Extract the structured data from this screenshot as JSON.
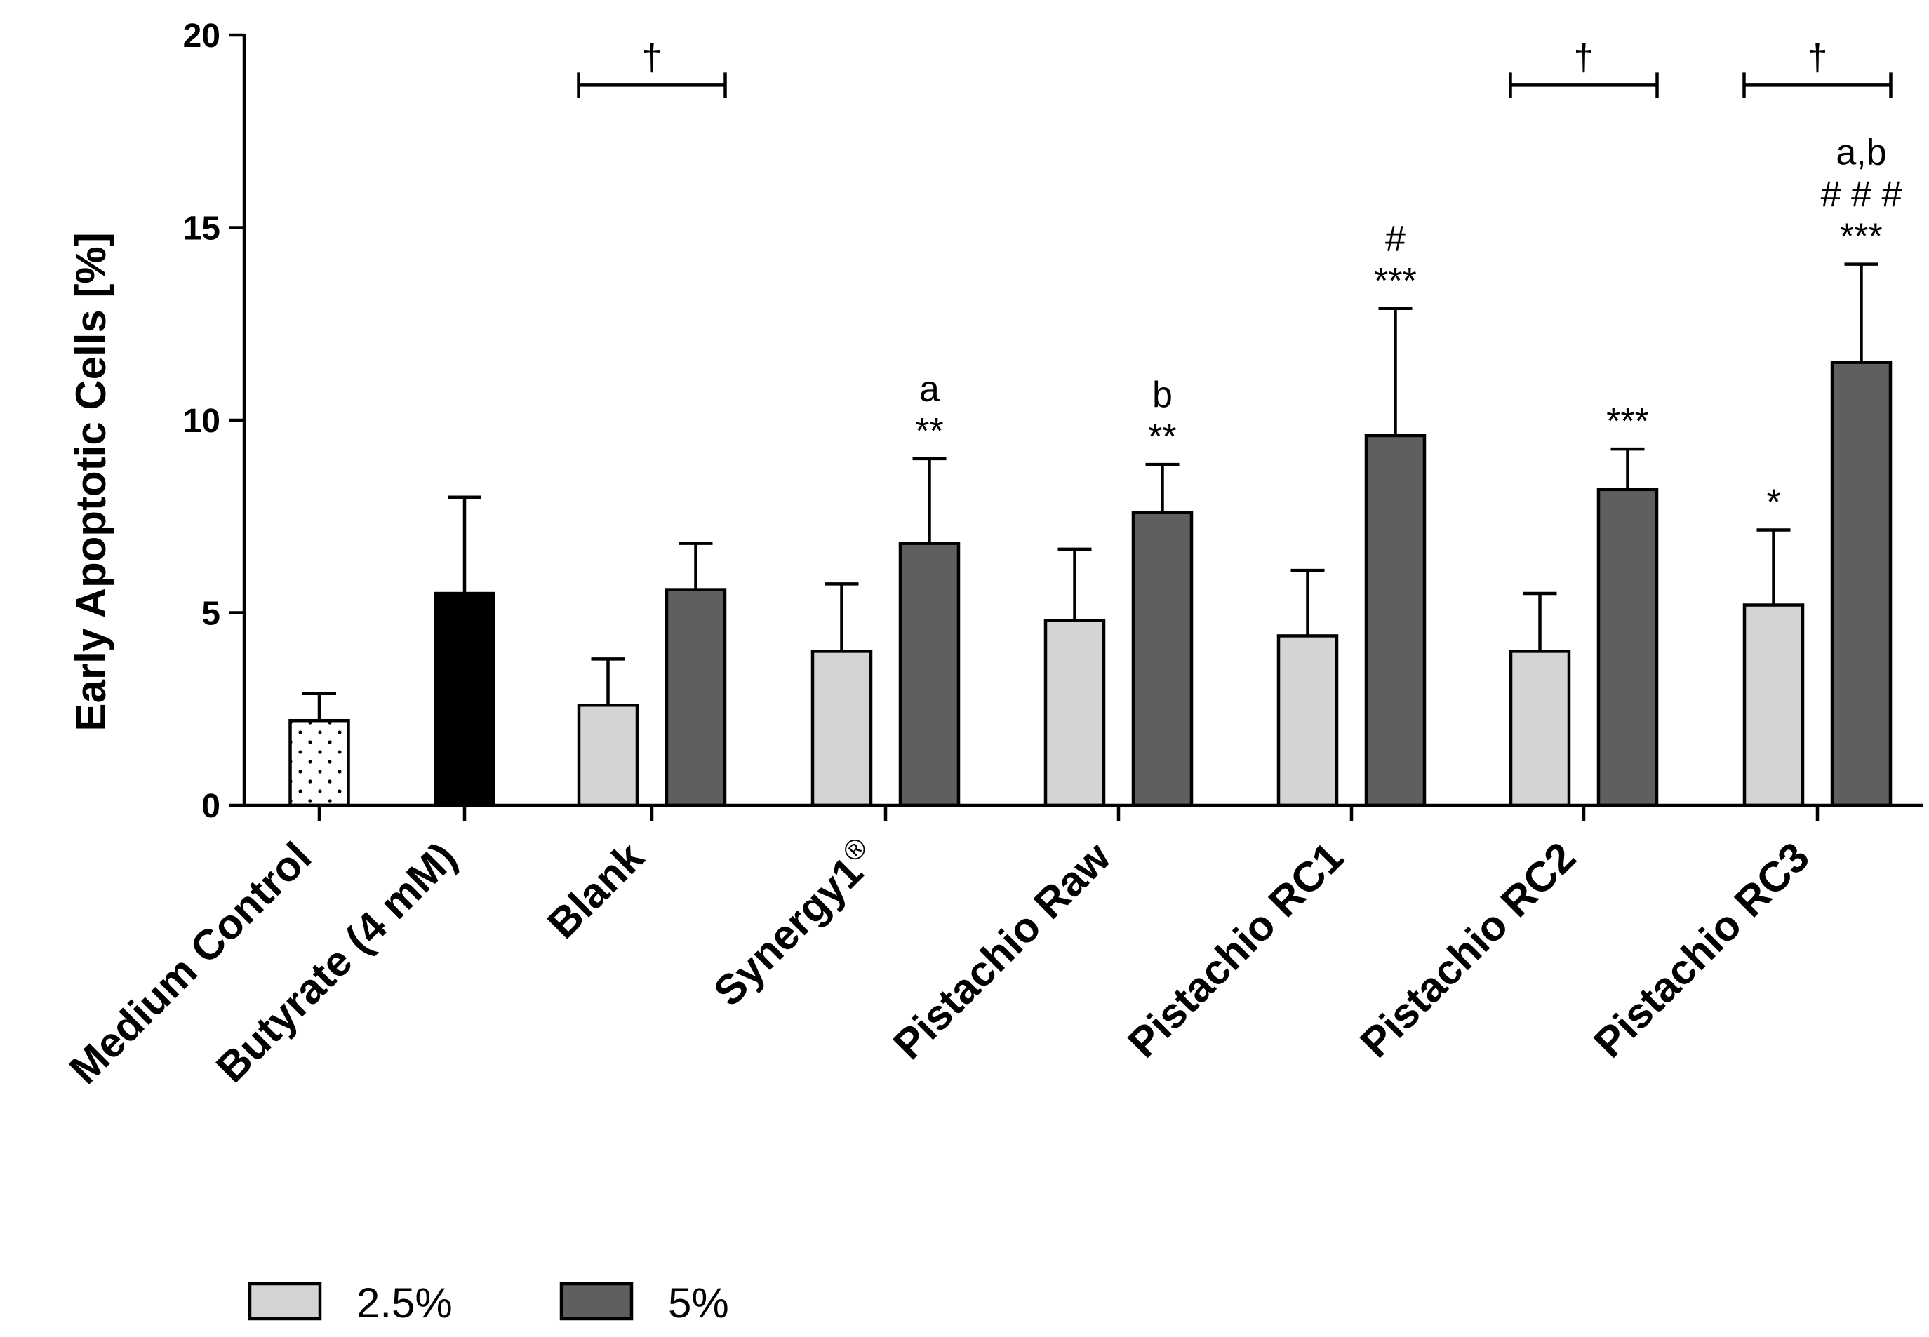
{
  "chart_data": {
    "type": "bar",
    "ylabel": "Early Apoptotic Cells [%]",
    "xlabel": "",
    "ylim": [
      0,
      20
    ],
    "yticks": [
      0,
      5,
      10,
      15,
      20
    ],
    "colors": {
      "medium": "#ffffff",
      "butyrate": "#000000",
      "s25": "#d4d4d4",
      "s5": "#5f5f5f"
    },
    "legend": {
      "position": "bottom-left",
      "items": [
        {
          "label": "2.5%",
          "series": "s25"
        },
        {
          "label": "5%",
          "series": "s5"
        }
      ]
    },
    "groups": [
      {
        "label": "Medium Control",
        "sup": "",
        "bars": [
          {
            "series": "medium",
            "value": 2.2,
            "error": 0.7,
            "annotations": []
          }
        ]
      },
      {
        "label": "Butyrate (4 mM)",
        "sup": "",
        "bars": [
          {
            "series": "butyrate",
            "value": 5.5,
            "error": 2.5,
            "annotations": []
          }
        ]
      },
      {
        "label": "Blank",
        "sup": "",
        "dagger": "†",
        "bars": [
          {
            "series": "s25",
            "value": 2.6,
            "error": 1.2,
            "annotations": []
          },
          {
            "series": "s5",
            "value": 5.6,
            "error": 1.2,
            "annotations": []
          }
        ]
      },
      {
        "label": "Synergy1",
        "sup": "®",
        "bars": [
          {
            "series": "s25",
            "value": 4.0,
            "error": 1.75,
            "annotations": []
          },
          {
            "series": "s5",
            "value": 6.8,
            "error": 2.2,
            "annotations": [
              "**",
              "a"
            ]
          }
        ]
      },
      {
        "label": "Pistachio Raw",
        "sup": "",
        "bars": [
          {
            "series": "s25",
            "value": 4.8,
            "error": 1.85,
            "annotations": []
          },
          {
            "series": "s5",
            "value": 7.6,
            "error": 1.25,
            "annotations": [
              "**",
              "b"
            ]
          }
        ]
      },
      {
        "label": "Pistachio RC1",
        "sup": "",
        "bars": [
          {
            "series": "s25",
            "value": 4.4,
            "error": 1.7,
            "annotations": []
          },
          {
            "series": "s5",
            "value": 9.6,
            "error": 3.3,
            "annotations": [
              "***",
              "#"
            ]
          }
        ]
      },
      {
        "label": "Pistachio RC2",
        "sup": "",
        "dagger": "†",
        "bars": [
          {
            "series": "s25",
            "value": 4.0,
            "error": 1.5,
            "annotations": []
          },
          {
            "series": "s5",
            "value": 8.2,
            "error": 1.05,
            "annotations": [
              "***"
            ]
          }
        ]
      },
      {
        "label": "Pistachio RC3",
        "sup": "",
        "dagger": "†",
        "bars": [
          {
            "series": "s25",
            "value": 5.2,
            "error": 1.95,
            "annotations": [
              "*"
            ]
          },
          {
            "series": "s5",
            "value": 11.5,
            "error": 2.55,
            "annotations": [
              "***",
              "# # #",
              "a,b"
            ]
          }
        ]
      }
    ]
  }
}
